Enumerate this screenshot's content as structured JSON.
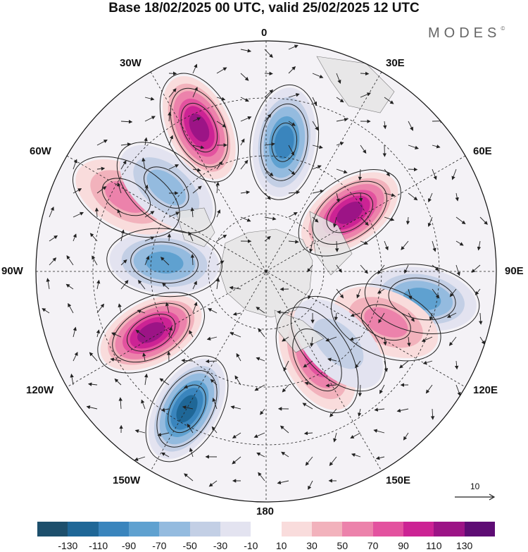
{
  "title": "Base 18/02/2025 00 UTC, valid 25/02/2025 12 UTC",
  "logo": "MODES",
  "logo_mark": "©",
  "longitude_labels": {
    "lon_0": "0",
    "lon_30e": "30E",
    "lon_60e": "60E",
    "lon_90e": "90E",
    "lon_120e": "120E",
    "lon_150e": "150E",
    "lon_180": "180",
    "lon_150w": "150W",
    "lon_120w": "120W",
    "lon_90w": "90W",
    "lon_60w": "60W",
    "lon_30w": "30W"
  },
  "reference_vector": {
    "label": "10",
    "value": 10
  },
  "colorbar": {
    "colors": [
      "#1d4f6c",
      "#1f6797",
      "#3a85bd",
      "#5fa1d0",
      "#94bbdf",
      "#c3cfe5",
      "#e3e3f0",
      "#ffffff",
      "#f9dcdc",
      "#f2b2bc",
      "#ec82ab",
      "#e3529f",
      "#cc2394",
      "#9c1486",
      "#5e0c74"
    ],
    "tick_labels": [
      "-130",
      "-110",
      "-90",
      "-70",
      "-50",
      "-30",
      "-10",
      "10",
      "30",
      "50",
      "70",
      "90",
      "110",
      "130"
    ]
  },
  "anomaly_centers": [
    {
      "lon": -25,
      "value": 115,
      "sign": "positive"
    },
    {
      "lon": 8,
      "value": -105,
      "sign": "negative"
    },
    {
      "lon": 55,
      "value": 110,
      "sign": "positive"
    },
    {
      "lon": 100,
      "value": -75,
      "sign": "negative"
    },
    {
      "lon": 113,
      "value": 55,
      "sign": "positive"
    },
    {
      "lon": 150,
      "value": 75,
      "sign": "positive"
    },
    {
      "lon": -150,
      "value": -115,
      "sign": "negative"
    },
    {
      "lon": -118,
      "value": 125,
      "sign": "positive"
    },
    {
      "lon": -85,
      "value": -70,
      "sign": "negative"
    },
    {
      "lon": -62,
      "value": 50,
      "sign": "positive"
    },
    {
      "lon": -50,
      "value": -50,
      "sign": "negative"
    },
    {
      "lon": 135,
      "value": -45,
      "sign": "negative"
    }
  ]
}
